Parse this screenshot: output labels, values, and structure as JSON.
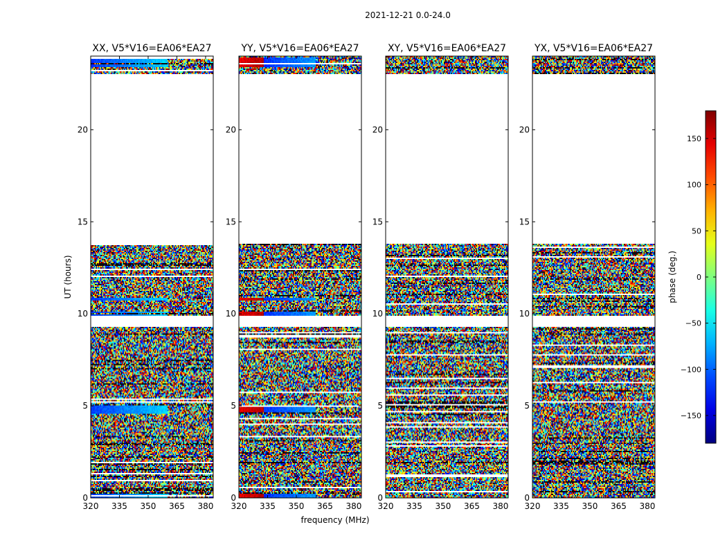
{
  "chart_data": {
    "type": "heatmap",
    "title": "2021-12-21 0.0-24.0",
    "xlabel": "frequency (MHz)",
    "ylabel": "UT (hours)",
    "xlim": [
      320,
      384
    ],
    "ylim": [
      0,
      24
    ],
    "x_ticks": [
      320,
      335,
      350,
      365,
      380
    ],
    "y_ticks": [
      0,
      5,
      10,
      15,
      20
    ],
    "panels": [
      {
        "title": "XX, V5*V16=EA06*EA27",
        "polarization": "XX"
      },
      {
        "title": "YY, V5*V16=EA06*EA27",
        "polarization": "YY"
      },
      {
        "title": "XY, V5*V16=EA06*EA27",
        "polarization": "XY"
      },
      {
        "title": "YX, V5*V16=EA06*EA27",
        "polarization": "YX"
      }
    ],
    "data_segments_hours": [
      [
        0.0,
        9.3
      ],
      [
        9.9,
        13.8
      ],
      [
        23.0,
        24.0
      ]
    ],
    "colorbar": {
      "label": "phase (deg.)",
      "range": [
        -180,
        180
      ],
      "ticks": [
        -150,
        -100,
        -50,
        0,
        50,
        100,
        150
      ],
      "colormap": "jet"
    }
  }
}
